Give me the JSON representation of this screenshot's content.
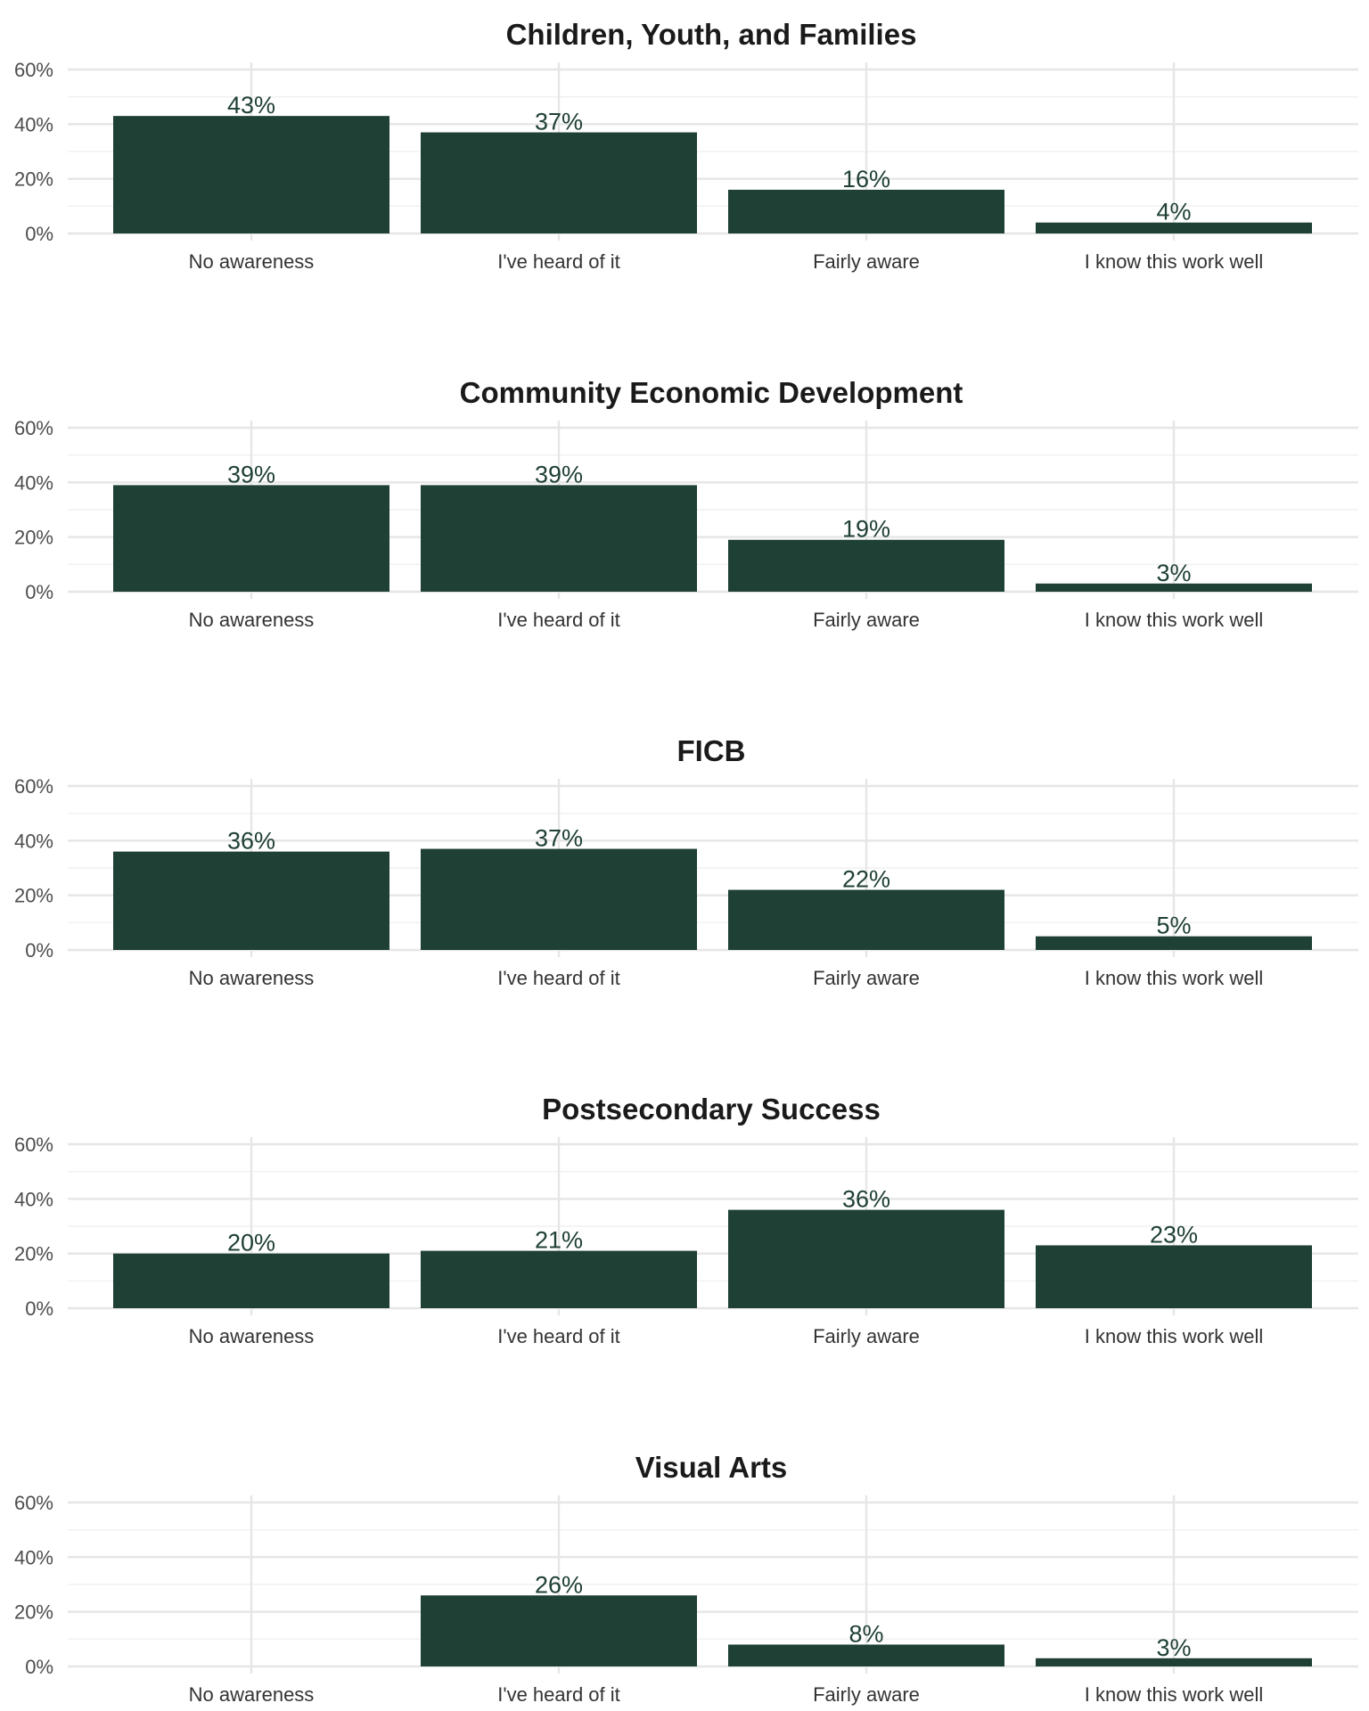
{
  "chart_data": [
    {
      "type": "bar",
      "title": "Children, Youth, and Families",
      "categories": [
        "No awareness",
        "I've heard of it",
        "Fairly aware",
        "I know this work well"
      ],
      "values": [
        43,
        37,
        16,
        4
      ],
      "labels": [
        "43%",
        "37%",
        "16%",
        "4%"
      ],
      "yticks": [
        "0%",
        "20%",
        "40%",
        "60%"
      ],
      "ylim": [
        0,
        60
      ],
      "grid": true,
      "color": "#1f4034"
    },
    {
      "type": "bar",
      "title": "Community Economic Development",
      "categories": [
        "No awareness",
        "I've heard of it",
        "Fairly aware",
        "I know this work well"
      ],
      "values": [
        39,
        39,
        19,
        3
      ],
      "labels": [
        "39%",
        "39%",
        "19%",
        "3%"
      ],
      "yticks": [
        "0%",
        "20%",
        "40%",
        "60%"
      ],
      "ylim": [
        0,
        60
      ],
      "grid": true,
      "color": "#1f4034"
    },
    {
      "type": "bar",
      "title": "FICB",
      "categories": [
        "No awareness",
        "I've heard of it",
        "Fairly aware",
        "I know this work well"
      ],
      "values": [
        36,
        37,
        22,
        5
      ],
      "labels": [
        "36%",
        "37%",
        "22%",
        "5%"
      ],
      "yticks": [
        "0%",
        "20%",
        "40%",
        "60%"
      ],
      "ylim": [
        0,
        60
      ],
      "grid": true,
      "color": "#1f4034"
    },
    {
      "type": "bar",
      "title": "Postsecondary Success",
      "categories": [
        "No awareness",
        "I've heard of it",
        "Fairly aware",
        "I know this work well"
      ],
      "values": [
        20,
        21,
        36,
        23
      ],
      "labels": [
        "20%",
        "21%",
        "36%",
        "23%"
      ],
      "yticks": [
        "0%",
        "20%",
        "40%",
        "60%"
      ],
      "ylim": [
        0,
        60
      ],
      "grid": true,
      "color": "#1f4034"
    },
    {
      "type": "bar",
      "title": "Visual Arts",
      "categories": [
        "No awareness",
        "I've heard of it",
        "Fairly aware",
        "I know this work well"
      ],
      "values": [
        null,
        26,
        8,
        3
      ],
      "labels": [
        "",
        "26%",
        "8%",
        "3%"
      ],
      "yticks": [
        "0%",
        "20%",
        "40%",
        "60%"
      ],
      "ylim": [
        0,
        60
      ],
      "grid": true,
      "color": "#1f4034"
    }
  ]
}
